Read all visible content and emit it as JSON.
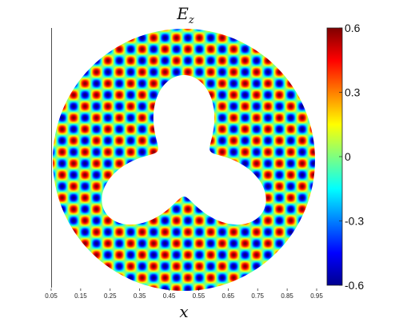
{
  "chart_data": {
    "type": "heatmap",
    "title_main": "E",
    "title_sub": "z",
    "xlabel": "x",
    "xlim": [
      0.05,
      0.95
    ],
    "xticks": [
      "0.05",
      "0.15",
      "0.25",
      "0.35",
      "0.45",
      "0.55",
      "0.65",
      "0.75",
      "0.85",
      "0.95"
    ],
    "colorbar": {
      "colormap": "jet",
      "clim": [
        -0.6,
        0.6
      ],
      "ticks": [
        "0.6",
        "0.3",
        "0",
        "-0.3",
        "-0.6"
      ]
    },
    "field": {
      "amplitude": 0.6,
      "pattern": "checkerboard sin(kx)·sin(ky)",
      "domain": "disk with three-lobed hole"
    }
  }
}
